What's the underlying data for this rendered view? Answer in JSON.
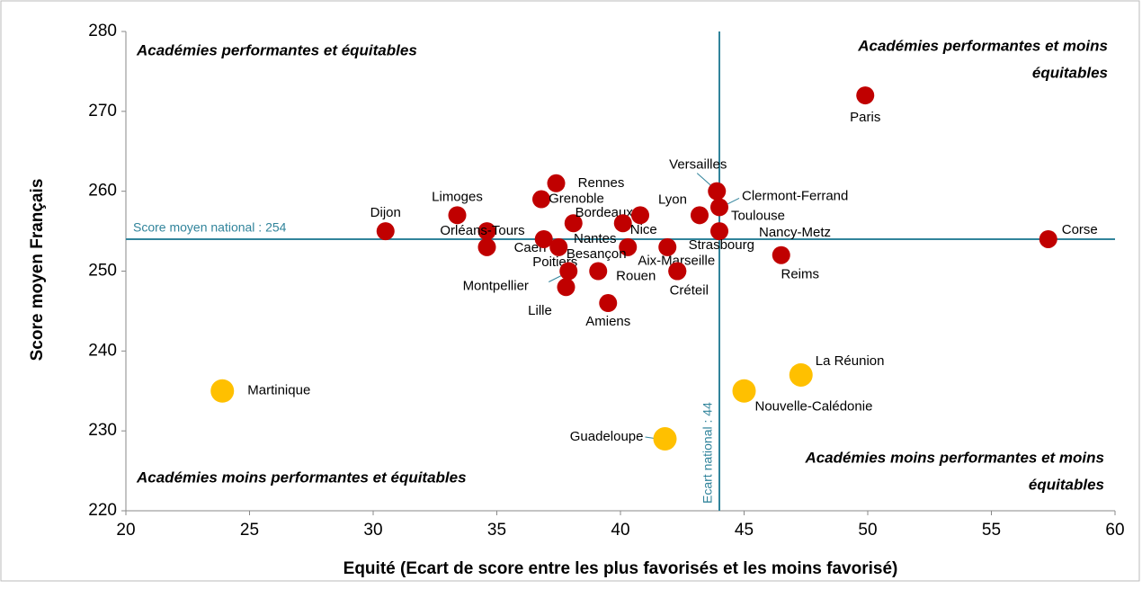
{
  "chart_data": {
    "type": "scatter",
    "x_label": "Equité (Ecart de score entre les plus favorisés et les moins favorisé)",
    "y_label": "Score moyen Français",
    "xlim": [
      20,
      60
    ],
    "ylim": [
      220,
      280
    ],
    "xticks": [
      20,
      25,
      30,
      35,
      40,
      45,
      50,
      55,
      60
    ],
    "yticks": [
      220,
      230,
      240,
      250,
      260,
      270,
      280
    ],
    "series": [
      {
        "color": "#c00000",
        "labels": [
          "Dijon",
          "Limoges",
          "Orléans-Tours",
          "Caen",
          "Grenoble",
          "Rennes",
          "Nantes",
          "Poitiers",
          "Bordeaux",
          "Nice",
          "Lyon",
          "Besançon",
          "Toulouse",
          "Versailles",
          "Clermont-Ferrand",
          "Nancy-Metz",
          "Strasbourg",
          "Aix-Marseille",
          "Créteil",
          "Rouen",
          "Montpellier",
          "Lille",
          "Amiens",
          "Reims",
          "Paris",
          "Corse"
        ],
        "x": [
          30.5,
          33.4,
          34.6,
          34.6,
          36.8,
          37.4,
          36.9,
          37.5,
          38.1,
          40.1,
          40.8,
          40.3,
          43.2,
          43.9,
          44.0,
          44.0,
          41.9,
          42.3,
          42.3,
          39.1,
          37.9,
          37.8,
          39.5,
          46.5,
          49.9,
          57.3
        ],
        "values": [
          255,
          257,
          255,
          253,
          259,
          261,
          254,
          253,
          256,
          256,
          257,
          253,
          257,
          260,
          258,
          255,
          253,
          250,
          250,
          250,
          250,
          248,
          246,
          252,
          272,
          254
        ]
      },
      {
        "color": "#ffc000",
        "labels": [
          "Martinique",
          "Guadeloupe",
          "Nouvelle-Calédonie",
          "La Réunion"
        ],
        "x": [
          23.9,
          41.8,
          45.0,
          47.3
        ],
        "values": [
          235,
          229,
          235,
          237
        ]
      }
    ],
    "reference_lines": [
      {
        "axis": "y",
        "value": 254,
        "label": "Score moyen national : 254",
        "color": "#31849b"
      },
      {
        "axis": "x",
        "value": 44,
        "label": "Ecart national : 44",
        "color": "#31849b"
      }
    ],
    "quadrant_labels": [
      {
        "corner": "top-left",
        "lines": [
          "Académies performantes et équitables"
        ]
      },
      {
        "corner": "top-right",
        "lines": [
          "Académies performantes et moins",
          "équitables"
        ]
      },
      {
        "corner": "bottom-left",
        "lines": [
          "Académies moins performantes et équitables"
        ]
      },
      {
        "corner": "bottom-right",
        "lines": [
          "Académies moins performantes et moins",
          "équitables"
        ]
      }
    ]
  }
}
